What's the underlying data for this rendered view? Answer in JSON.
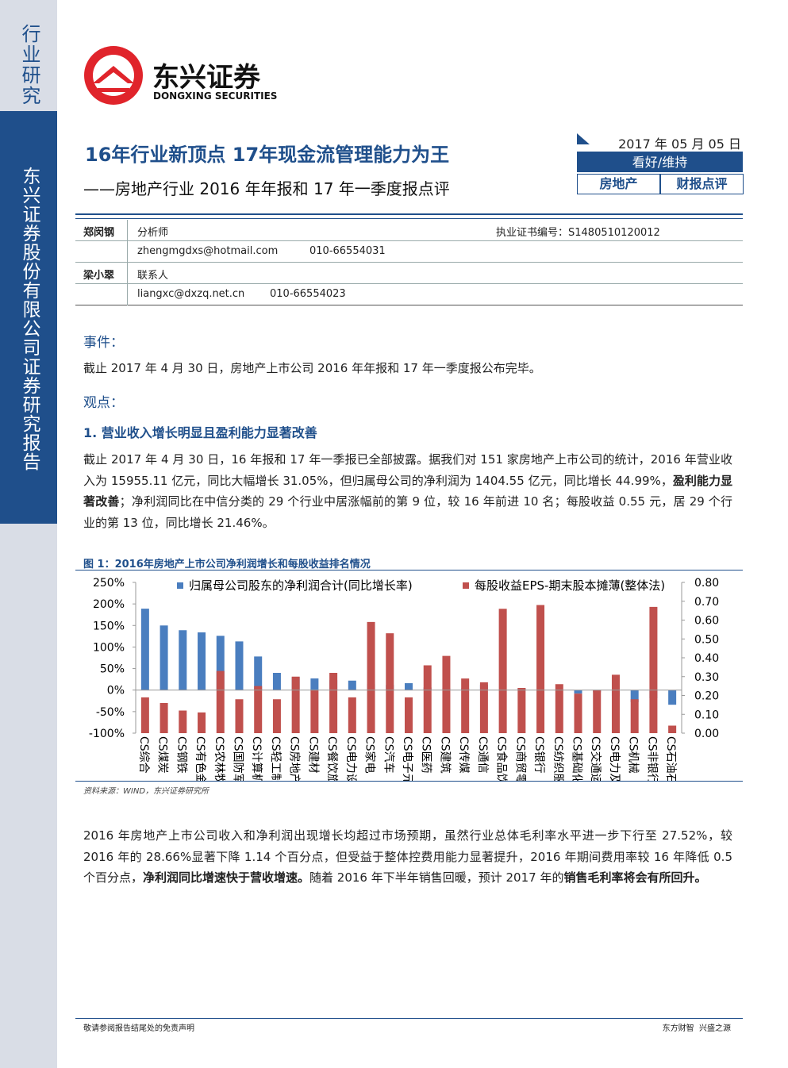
{
  "sidebar": {
    "section": "行业研究",
    "company": "东兴证券股份有限公司证券研究报告"
  },
  "header": {
    "logo_cn": "东兴证券",
    "logo_en": "DONGXING SECURITIES",
    "title": "16年行业新顶点 17年现金流管理能力为王",
    "subtitle": "——房地产行业 2016 年年报和 17 年一季度报点评",
    "date": "2017 年 05 月 05 日",
    "rating": "看好/维持",
    "tags": [
      "房地产",
      "财报点评"
    ]
  },
  "analysts": [
    {
      "name": "郑闵钢",
      "role": "分析师",
      "license": "执业证书编号：S1480510120012",
      "email": "zhengmgdxs@hotmail.com",
      "phone": "010-66554031"
    },
    {
      "name": "梁小翠",
      "role": "联系人",
      "email": "liangxc@dxzq.net.cn",
      "phone": "010-66554023"
    }
  ],
  "body": {
    "event_heading": "事件：",
    "event_text": "截止 2017 年 4 月 30 日，房地产上市公司 2016 年年报和 17 年一季度报公布完毕。",
    "view_heading": "观点：",
    "point_heading": "1. 营业收入增长明显且盈利能力显著改善",
    "paragraphs": [
      {
        "segments": [
          {
            "text": "截止 2017 年 4 月 30 日，16 年报和 17 年一季报已全部披露。据我们对 151 家房地产上市公司的统计，2016 年营业收入为 15955.11 亿元，同比大幅增长 31.05%，但归属母公司的净利润为 1404.55 亿元，同比增长 44.99%，",
            "bold": false
          },
          {
            "text": "盈利能力显著改善",
            "bold": true
          },
          {
            "text": "；净利润同比在中信分类的 29 个行业中居涨幅前的第 9 位，较 16 年前进 10 名；每股收益 0.55 元，居 29 个行业的第 13 位，同比增长 21.46%。",
            "bold": false
          }
        ]
      },
      {
        "segments": [
          {
            "text": "2016 年房地产上市公司收入和净利润出现增长均超过市场预期，虽然行业总体毛利率水平进一步下行至 27.52%，较 2016 年的 28.66%显著下降 1.14 个百分点，但受益于整体控费用能力显著提升，2016 年期间费用率较 16 年降低 0.5 个百分点，",
            "bold": false
          },
          {
            "text": "净利润同比增速快于营收增速。",
            "bold": true
          },
          {
            "text": "随着 2016 年下半年销售回暖，预计 2017 年的",
            "bold": false
          },
          {
            "text": "销售毛利率将会有所回升。",
            "bold": true
          }
        ]
      }
    ]
  },
  "chart_data": {
    "type": "bar",
    "title": "图 1：2016年房地产上市公司净利润增长和每股收益排名情况",
    "source": "资料来源：WIND，东兴证券研究所",
    "categories": [
      "CS综合",
      "CS煤炭",
      "CS钢铁",
      "CS有色金属",
      "CS农林牧渔",
      "CS国防军工",
      "CS计算机",
      "CS轻工制造",
      "CS房地产",
      "CS建材",
      "CS餐饮旅游",
      "CS电力设备",
      "CS家电",
      "CS汽车",
      "CS电子元器件",
      "CS医药",
      "CS建筑",
      "CS传媒",
      "CS通信",
      "CS食品饮料",
      "CS商贸零售",
      "CS银行",
      "CS纺织服装",
      "CS基础化工",
      "CS交通运输",
      "CS电力及公用…",
      "CS机械",
      "CS非银行金融",
      "CS石油石化"
    ],
    "series": [
      {
        "name": "归属母公司股东的净利润合计(同比增长率)",
        "color": "#4a7ebf",
        "axis": "y",
        "values": [
          189,
          150,
          139,
          134,
          126,
          113,
          78,
          40,
          30,
          27,
          23,
          22,
          14,
          12,
          16,
          6,
          5,
          4,
          12,
          1,
          4,
          0,
          1,
          -8,
          -5,
          -14,
          -28,
          -19,
          -34
        ]
      },
      {
        "name": "每股收益EPS-期末股本摊薄(整体法)",
        "color": "#c0504d",
        "axis": "y2",
        "values": [
          0.19,
          0.16,
          0.12,
          0.11,
          0.33,
          0.18,
          0.25,
          0.18,
          0.3,
          0.23,
          0.32,
          0.19,
          0.59,
          0.53,
          0.19,
          0.36,
          0.41,
          0.29,
          0.27,
          0.66,
          0.24,
          0.68,
          0.26,
          0.21,
          0.23,
          0.31,
          0.18,
          0.67,
          0.04
        ]
      }
    ],
    "ylim": [
      -100,
      250
    ],
    "yticks": [
      {
        "value": -100,
        "label": "-100%"
      },
      {
        "value": -50,
        "label": "-50%"
      },
      {
        "value": 0,
        "label": "0%"
      },
      {
        "value": 50,
        "label": "50%"
      },
      {
        "value": 100,
        "label": "100%"
      },
      {
        "value": 150,
        "label": "150%"
      },
      {
        "value": 200,
        "label": "200%"
      },
      {
        "value": 250,
        "label": "250%"
      }
    ],
    "y2lim": [
      0,
      0.8
    ],
    "y2ticks": [
      {
        "value": 0,
        "label": "0.00"
      },
      {
        "value": 0.1,
        "label": "0.10"
      },
      {
        "value": 0.2,
        "label": "0.20"
      },
      {
        "value": 0.3,
        "label": "0.30"
      },
      {
        "value": 0.4,
        "label": "0.40"
      },
      {
        "value": 0.5,
        "label": "0.50"
      },
      {
        "value": 0.6,
        "label": "0.60"
      },
      {
        "value": 0.7,
        "label": "0.70"
      },
      {
        "value": 0.8,
        "label": "0.80"
      }
    ]
  },
  "footer": {
    "left": "敬请参阅报告结尾处的免责声明",
    "right": "东方财智  兴盛之源"
  }
}
